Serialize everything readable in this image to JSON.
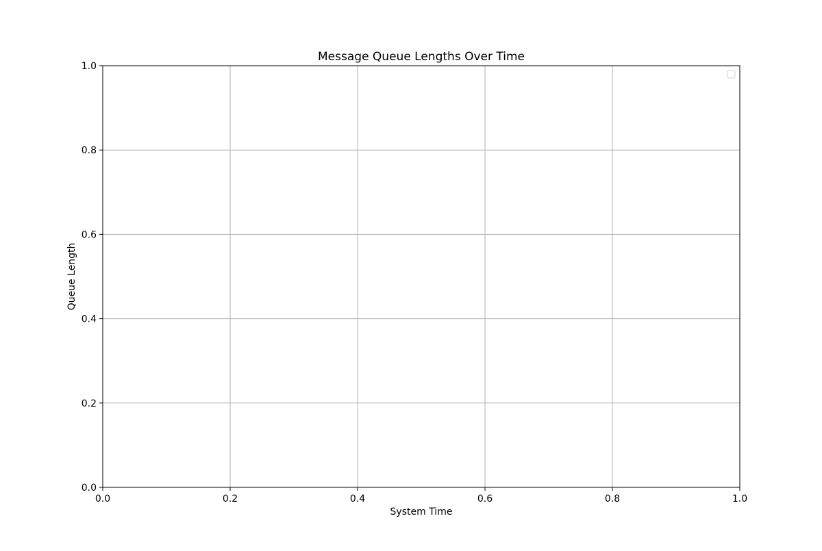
{
  "chart_data": {
    "type": "line",
    "title": "Message Queue Lengths Over Time",
    "xlabel": "System Time",
    "ylabel": "Queue Length",
    "xlim": [
      0.0,
      1.0
    ],
    "ylim": [
      0.0,
      1.0
    ],
    "xticks": [
      0.0,
      0.2,
      0.4,
      0.6,
      0.8,
      1.0
    ],
    "yticks": [
      0.0,
      0.2,
      0.4,
      0.6,
      0.8,
      1.0
    ],
    "xtick_labels": [
      "0.0",
      "0.2",
      "0.4",
      "0.6",
      "0.8",
      "1.0"
    ],
    "ytick_labels": [
      "0.0",
      "0.2",
      "0.4",
      "0.6",
      "0.8",
      "1.0"
    ],
    "grid": true,
    "legend": {
      "placement": "top-right",
      "entries": []
    },
    "series": [],
    "colors": {
      "grid": "#b0b0b0",
      "axes": "#000000",
      "legend_border": "#cccccc",
      "background": "#ffffff"
    }
  }
}
